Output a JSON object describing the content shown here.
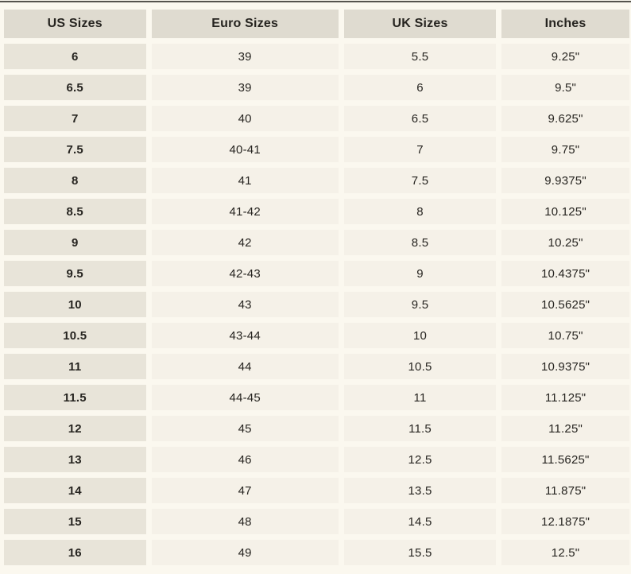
{
  "table": {
    "headers": [
      "US Sizes",
      "Euro Sizes",
      "UK Sizes",
      "Inches"
    ],
    "rows": [
      [
        "6",
        "39",
        "5.5",
        "9.25\""
      ],
      [
        "6.5",
        "39",
        "6",
        "9.5\""
      ],
      [
        "7",
        "40",
        "6.5",
        "9.625\""
      ],
      [
        "7.5",
        "40-41",
        "7",
        "9.75\""
      ],
      [
        "8",
        "41",
        "7.5",
        "9.9375\""
      ],
      [
        "8.5",
        "41-42",
        "8",
        "10.125\""
      ],
      [
        "9",
        "42",
        "8.5",
        "10.25\""
      ],
      [
        "9.5",
        "42-43",
        "9",
        "10.4375\""
      ],
      [
        "10",
        "43",
        "9.5",
        "10.5625\""
      ],
      [
        "10.5",
        "43-44",
        "10",
        "10.75\""
      ],
      [
        "11",
        "44",
        "10.5",
        "10.9375\""
      ],
      [
        "11.5",
        "44-45",
        "11",
        "11.125\""
      ],
      [
        "12",
        "45",
        "11.5",
        "11.25\""
      ],
      [
        "13",
        "46",
        "12.5",
        "11.5625\""
      ],
      [
        "14",
        "47",
        "13.5",
        "11.875\""
      ],
      [
        "15",
        "48",
        "14.5",
        "12.1875\""
      ],
      [
        "16",
        "49",
        "15.5",
        "12.5\""
      ]
    ]
  },
  "colors": {
    "page_bg": "#fbf8ef",
    "header_cell_bg": "#dfdbd0",
    "us_column_cell_bg": "#e8e4d9",
    "data_cell_bg": "#f5f1e8",
    "gutter": "#fdfcf5",
    "text": "#262420",
    "top_line": "#55534d"
  },
  "chart_data": {
    "type": "table",
    "columns": [
      "US Sizes",
      "Euro Sizes",
      "UK Sizes",
      "Inches"
    ],
    "rows": [
      [
        "6",
        "39",
        "5.5",
        "9.25\""
      ],
      [
        "6.5",
        "39",
        "6",
        "9.5\""
      ],
      [
        "7",
        "40",
        "6.5",
        "9.625\""
      ],
      [
        "7.5",
        "40-41",
        "7",
        "9.75\""
      ],
      [
        "8",
        "41",
        "7.5",
        "9.9375\""
      ],
      [
        "8.5",
        "41-42",
        "8",
        "10.125\""
      ],
      [
        "9",
        "42",
        "8.5",
        "10.25\""
      ],
      [
        "9.5",
        "42-43",
        "9",
        "10.4375\""
      ],
      [
        "10",
        "43",
        "9.5",
        "10.5625\""
      ],
      [
        "10.5",
        "43-44",
        "10",
        "10.75\""
      ],
      [
        "11",
        "44",
        "10.5",
        "10.9375\""
      ],
      [
        "11.5",
        "44-45",
        "11",
        "11.125\""
      ],
      [
        "12",
        "45",
        "11.5",
        "11.25\""
      ],
      [
        "13",
        "46",
        "12.5",
        "11.5625\""
      ],
      [
        "14",
        "47",
        "13.5",
        "11.875\""
      ],
      [
        "15",
        "48",
        "14.5",
        "12.1875\""
      ],
      [
        "16",
        "49",
        "15.5",
        "12.5\""
      ]
    ]
  }
}
